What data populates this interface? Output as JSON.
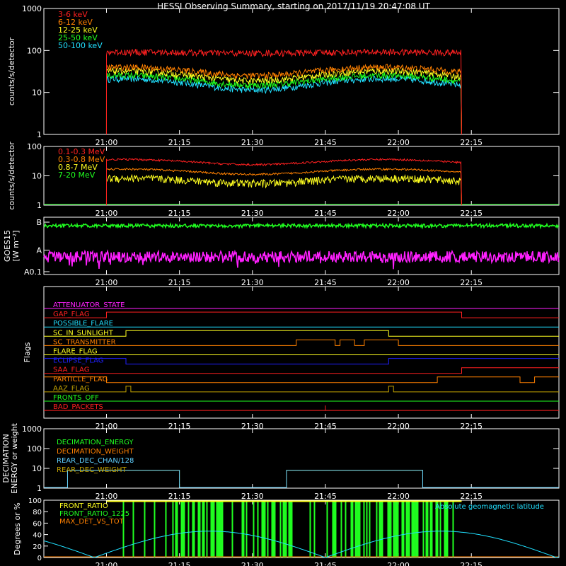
{
  "title": "HESSI Observing Summary, starting on 2017/11/19 20:47:08 UT",
  "time_ticks": [
    "21:00",
    "21:15",
    "21:30",
    "21:45",
    "22:00",
    "22:15"
  ],
  "colors": {
    "red": "#ff2020",
    "orange": "#ff8000",
    "yellow": "#ffff20",
    "green": "#20ff20",
    "cyan": "#20e0ff",
    "magenta": "#ff20ff",
    "blue": "#2020ff",
    "olive": "#c0a000",
    "lightblue": "#60d0ff",
    "white": "#ffffff"
  },
  "chart_data": [
    {
      "type": "line",
      "name": "hi-energy count rates",
      "ylabel": "counts/s/detector",
      "yscale": "log",
      "ylim": [
        1,
        1000
      ],
      "y_ticks": [
        "1",
        "10",
        "100",
        "1000"
      ],
      "x_range": [
        "20:47:08",
        "22:33"
      ],
      "data_window": [
        "21:00",
        "22:13"
      ],
      "series": [
        {
          "name": "3-6 keV",
          "color": "#ff2020",
          "base": 90,
          "amp": 0.05
        },
        {
          "name": "6-12 keV",
          "color": "#ff8000",
          "base": 35,
          "amp": 0.35
        },
        {
          "name": "12-25 keV",
          "color": "#ffff20",
          "base": 28,
          "amp": 0.4
        },
        {
          "name": "25-50 keV",
          "color": "#20ff20",
          "base": 22,
          "amp": 0.4
        },
        {
          "name": "50-100 keV",
          "color": "#20e0ff",
          "base": 18,
          "amp": 0.45
        }
      ]
    },
    {
      "type": "line",
      "name": "gamma count rates",
      "ylabel": "counts/s/detector",
      "yscale": "log",
      "ylim": [
        1,
        100
      ],
      "y_ticks": [
        "1",
        "10",
        "100"
      ],
      "series": [
        {
          "name": "0.1-0.3 MeV",
          "color": "#ff2020",
          "base": 30,
          "amp": 0.35
        },
        {
          "name": "0.3-0.8 MeV",
          "color": "#ff8000",
          "base": 14,
          "amp": 0.35
        },
        {
          "name": "0.8-7 MeV",
          "color": "#ffff20",
          "base": 7,
          "amp": 0.4
        },
        {
          "name": "7-20 MeV",
          "color": "#20ff20",
          "base": 0,
          "amp": 0
        }
      ]
    },
    {
      "type": "line",
      "name": "GOES",
      "ylabel": "GOES15",
      "ylabel2": "[W m⁻²]",
      "y_ticks": [
        "A0.1",
        "A",
        "B"
      ],
      "series": [
        {
          "name": "long",
          "color": "#20ff20"
        },
        {
          "name": "short",
          "color": "#ff20ff"
        }
      ]
    },
    {
      "type": "line",
      "name": "Flags",
      "ylabel": "Flags",
      "flags": [
        {
          "label": "ATTENUATOR_STATE",
          "color": "#ff20ff"
        },
        {
          "label": "GAP_FLAG",
          "color": "#ff2020"
        },
        {
          "label": "POSSIBLE_FLARE",
          "color": "#20e0ff"
        },
        {
          "label": "SC_IN_SUNLIGHT",
          "color": "#ffff20"
        },
        {
          "label": "SC_TRANSMITTER",
          "color": "#ff8000"
        },
        {
          "label": "FLARE_FLAG",
          "color": "#ffff20"
        },
        {
          "label": "ECLIPSE_FLAG",
          "color": "#2020ff"
        },
        {
          "label": "SAA_FLAG",
          "color": "#ff2020"
        },
        {
          "label": "PARTICLE_FLAG",
          "color": "#ff8000"
        },
        {
          "label": "AAZ_FLAG",
          "color": "#c0a000"
        },
        {
          "label": "FRONTS_OFF",
          "color": "#20ff20"
        },
        {
          "label": "BAD_PACKETS",
          "color": "#ff2020"
        }
      ]
    },
    {
      "type": "line",
      "name": "decimation",
      "ylabel": "DECIMATION",
      "ylabel2": "ENERGY or weight",
      "yscale": "log",
      "ylim": [
        1,
        1000
      ],
      "y_ticks": [
        "1",
        "10",
        "100",
        "1000"
      ],
      "series": [
        {
          "name": "DECIMATION_ENERGY",
          "color": "#20ff20"
        },
        {
          "name": "DECIMATION_WEIGHT",
          "color": "#ff8000"
        },
        {
          "name": "REAR_DEC_CHAN/128",
          "color": "#60d0ff"
        },
        {
          "name": "REAR_DEC_WEIGHT",
          "color": "#c0a000"
        }
      ]
    },
    {
      "type": "line",
      "name": "ratios",
      "ylabel": "Degrees or %",
      "ylim": [
        0,
        100
      ],
      "y_ticks": [
        "0",
        "20",
        "40",
        "60",
        "80",
        "100"
      ],
      "series": [
        {
          "name": "FRONT_RATIO",
          "color": "#ffff20"
        },
        {
          "name": "FRONT_RATIO_1225",
          "color": "#20ff20"
        },
        {
          "name": "MAX_DET_VS_TOT",
          "color": "#ff8000"
        },
        {
          "name": "Absolute geomagnetic latitude",
          "color": "#20e0ff"
        }
      ]
    }
  ]
}
